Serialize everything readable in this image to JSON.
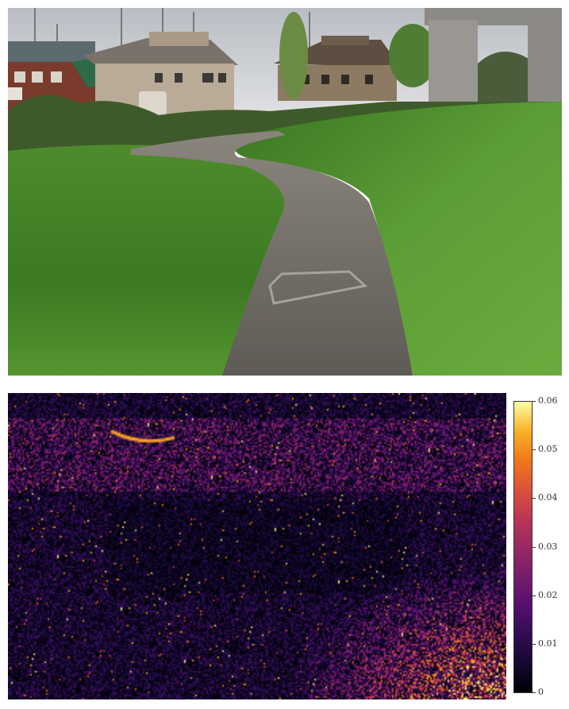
{
  "top_image": {
    "subject": "park-path-photo"
  },
  "heatmap": {
    "colormap": "inferno",
    "colorbar": {
      "ticks": [
        "0",
        "0.01",
        "0.02",
        "0.03",
        "0.04",
        "0.05",
        "0.06"
      ],
      "min": 0,
      "max": 0.06
    }
  },
  "colors": {
    "sky": "#c9ccd0",
    "grass_light": "#5d9a38",
    "grass_dark": "#2f6a1c",
    "path": "#6b6660",
    "heat_bg": "#05030f"
  }
}
